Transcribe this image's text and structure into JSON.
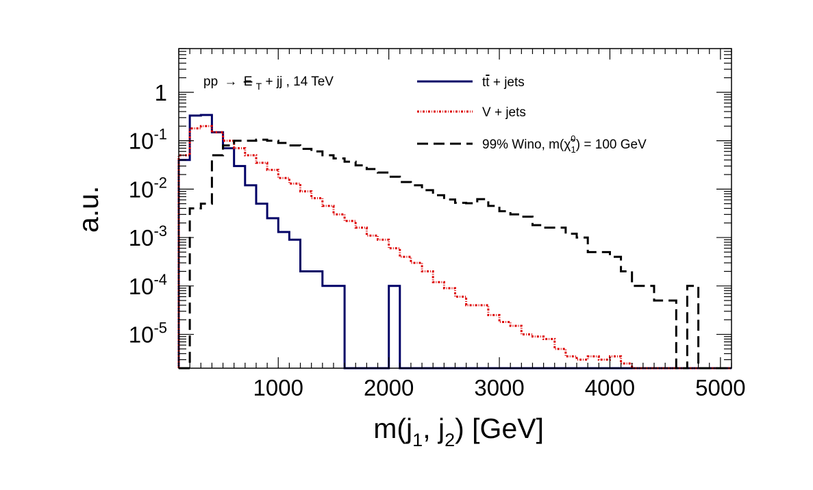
{
  "chart_data": {
    "type": "line",
    "title": "",
    "annotation": {
      "prefix": "pp",
      "arrow": "→",
      "met": "E",
      "met_sub": "T",
      "suffix": " + jj , 14 TeV"
    },
    "xlabel": {
      "prefix": "m(j",
      "sub1": "1",
      "mid": ", j",
      "sub2": "2",
      "suffix": ") [GeV]"
    },
    "ylabel": "a.u.",
    "xlim": [
      100,
      5100
    ],
    "ylog": true,
    "ylim": [
      2e-06,
      8
    ],
    "x_ticks": [
      1000,
      2000,
      3000,
      4000,
      5000
    ],
    "x_tick_labels": [
      "1000",
      "2000",
      "3000",
      "4000",
      "5000"
    ],
    "y_ticks": [
      {
        "value": 1,
        "base": "1",
        "exp": ""
      },
      {
        "value": 0.1,
        "base": "10",
        "exp": "-1"
      },
      {
        "value": 0.01,
        "base": "10",
        "exp": "-2"
      },
      {
        "value": 0.001,
        "base": "10",
        "exp": "-3"
      },
      {
        "value": 0.0001,
        "base": "10",
        "exp": "-4"
      },
      {
        "value": 1e-05,
        "base": "10",
        "exp": "-5"
      }
    ],
    "grid": false,
    "legend_position": "top-right",
    "bin_edges": [
      100,
      200,
      300,
      400,
      500,
      600,
      700,
      800,
      900,
      1000,
      1100,
      1200,
      1300,
      1400,
      1500,
      1600,
      1700,
      1800,
      1900,
      2000,
      2100,
      2200,
      2300,
      2400,
      2500,
      2600,
      2700,
      2800,
      2900,
      3000,
      3100,
      3200,
      3300,
      3400,
      3500,
      3600,
      3700,
      3800,
      3900,
      4000,
      4100,
      4200,
      4300,
      4400,
      4500,
      4600,
      4700,
      4800,
      4900,
      5000,
      5100
    ],
    "series": [
      {
        "name": "tt̄ + jets",
        "legend": {
          "base": "t",
          "bar": "t",
          "rest": " + jets"
        },
        "color": "#000066",
        "dash": "solid",
        "values": [
          0.04,
          0.33,
          0.34,
          0.15,
          0.07,
          0.03,
          0.012,
          0.005,
          0.0025,
          0.0013,
          0.0009,
          0.0002,
          0.0002,
          0.0001,
          0.0001,
          0,
          0,
          0,
          0,
          0.0001,
          0,
          0,
          0,
          0,
          0,
          0,
          0,
          0,
          0,
          0,
          0,
          0,
          0,
          0,
          0,
          0,
          0,
          0,
          0,
          0,
          0,
          0,
          0,
          0,
          0,
          0,
          0,
          0,
          0,
          0
        ]
      },
      {
        "name": "V + jets",
        "legend": {
          "text": "V + jets"
        },
        "color": "#dd0000",
        "dash": "dotted",
        "values": [
          0.05,
          0.18,
          0.2,
          0.15,
          0.1,
          0.07,
          0.05,
          0.035,
          0.025,
          0.017,
          0.013,
          0.009,
          0.0065,
          0.0045,
          0.003,
          0.0022,
          0.0016,
          0.0011,
          0.0009,
          0.0006,
          0.0004,
          0.0003,
          0.0002,
          0.00012,
          9e-05,
          6e-05,
          4e-05,
          4e-05,
          2.5e-05,
          1.8e-05,
          1.5e-05,
          1e-05,
          9e-06,
          8e-06,
          5e-06,
          3.5e-06,
          3e-06,
          3.5e-06,
          3e-06,
          3.5e-06,
          2.5e-06,
          1e-08,
          1e-08,
          2e-06,
          1e-08,
          1e-06,
          0,
          0,
          0,
          0
        ]
      },
      {
        "name": "99% Wino, m(χ̃₁⁰) = 100 GeV",
        "legend": {
          "pre": "99% Wino, m(",
          "chi": "χ̃",
          "sup": "0",
          "sub": "1",
          "post": ") = 100 GeV"
        },
        "color": "#000000",
        "dash": "dashed",
        "values": [
          0,
          0.004,
          0.005,
          0.05,
          0.08,
          0.1,
          0.1,
          0.105,
          0.1,
          0.09,
          0.08,
          0.068,
          0.06,
          0.05,
          0.043,
          0.037,
          0.031,
          0.026,
          0.022,
          0.018,
          0.014,
          0.012,
          0.0095,
          0.0075,
          0.0061,
          0.0052,
          0.0051,
          0.0062,
          0.0045,
          0.0035,
          0.003,
          0.0027,
          0.0018,
          0.0016,
          0.0016,
          0.0012,
          0.001,
          0.0005,
          0.0005,
          0.0004,
          0.0002,
          0.0001,
          0.0001,
          5e-05,
          5e-05,
          2e-06,
          0.0001,
          2e-06,
          2e-06,
          2e-06
        ]
      }
    ]
  }
}
